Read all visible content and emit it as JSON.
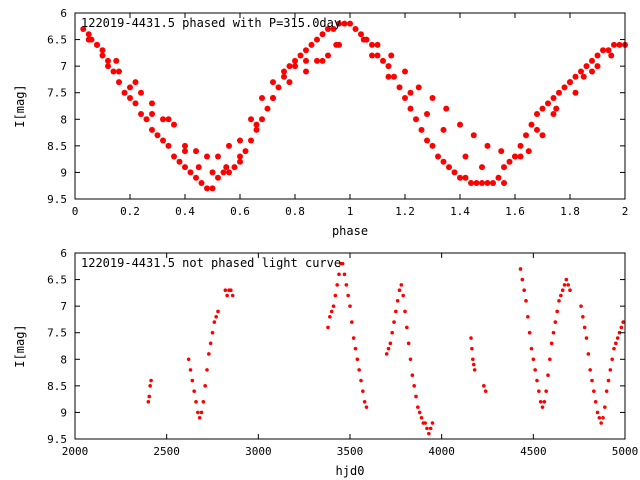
{
  "chart_data": [
    {
      "type": "scatter",
      "title": "122019-4431.5 phased with P=315.0day",
      "xlabel": "phase",
      "ylabel": "I[mag]",
      "xlim": [
        0,
        2
      ],
      "ylim": [
        9.5,
        6
      ],
      "y_inverted": true,
      "x_ticks": [
        0,
        0.2,
        0.4,
        0.6,
        0.8,
        1,
        1.2,
        1.4,
        1.6,
        1.8,
        2
      ],
      "x_tick_labels": [
        "0",
        "0.2",
        "0.4",
        "0.6",
        "0.8",
        "1",
        "1.2",
        "1.4",
        "1.6",
        "1.8",
        "2"
      ],
      "y_ticks": [
        6,
        6.5,
        7,
        7.5,
        8,
        8.5,
        9,
        9.5
      ],
      "y_tick_labels": [
        "6",
        "6.5",
        "7",
        "7.5",
        "8",
        "8.5",
        "9",
        "9.5"
      ],
      "grid": false,
      "legend": "none",
      "marker_color": "#ff0000",
      "series": [
        {
          "x": [
            0.03,
            0.05,
            0.06,
            0.08,
            0.1,
            0.12,
            0.14,
            0.16,
            0.18,
            0.2,
            0.22,
            0.24,
            0.26,
            0.28,
            0.3,
            0.32,
            0.34,
            0.36,
            0.38,
            0.4,
            0.42,
            0.44,
            0.46,
            0.48,
            0.5,
            0.52,
            0.54,
            0.56,
            0.58,
            0.6,
            0.62,
            0.64,
            0.66,
            0.68,
            0.7,
            0.72,
            0.74,
            0.76,
            0.78,
            0.8,
            0.82,
            0.84,
            0.86,
            0.88,
            0.9,
            0.92,
            0.94,
            0.96,
            0.98,
            1.0,
            1.02,
            1.04,
            1.06,
            1.08,
            1.1,
            1.12,
            1.14,
            1.16,
            1.18,
            1.2,
            1.22,
            1.24,
            1.26,
            1.28,
            1.3,
            1.32,
            1.34,
            1.36,
            1.38,
            1.4,
            1.42,
            1.44,
            1.46,
            1.48,
            1.5,
            1.52,
            1.54,
            1.56,
            1.58,
            1.6,
            1.62,
            1.64,
            1.66,
            1.68,
            1.7,
            1.72,
            1.74,
            1.76,
            1.78,
            1.8,
            1.82,
            1.84,
            1.86,
            1.88,
            1.9,
            1.92,
            1.94,
            1.96,
            1.98,
            2.0,
            0.05,
            0.08,
            0.12,
            0.16,
            0.2,
            0.24,
            0.28,
            0.32,
            0.36,
            0.4,
            0.44,
            0.48,
            0.52,
            0.56,
            0.6,
            0.64,
            0.68,
            0.72,
            0.76,
            0.8,
            0.84,
            0.88,
            0.92,
            0.96,
            1.05,
            1.1,
            1.15,
            1.2,
            1.25,
            1.3,
            1.35,
            1.4,
            1.45,
            1.5,
            1.55,
            1.6,
            1.65,
            1.7,
            1.75,
            1.8,
            1.85,
            1.9,
            1.95,
            0.1,
            0.15,
            0.22,
            0.28,
            0.34,
            0.4,
            0.45,
            0.5,
            0.55,
            0.6,
            0.66,
            0.72,
            0.78,
            0.84,
            0.9,
            0.95,
            1.08,
            1.14,
            1.22,
            1.28,
            1.34,
            1.42,
            1.48,
            1.56,
            1.62,
            1.68,
            1.74,
            1.82,
            1.88
          ],
          "y": [
            6.3,
            6.4,
            6.5,
            6.6,
            6.8,
            7.0,
            7.1,
            7.3,
            7.5,
            7.6,
            7.7,
            7.9,
            8.0,
            8.2,
            8.3,
            8.4,
            8.5,
            8.7,
            8.8,
            8.9,
            9.0,
            9.1,
            9.2,
            9.3,
            9.3,
            9.1,
            9.0,
            9.0,
            8.9,
            8.8,
            8.6,
            8.4,
            8.2,
            8.0,
            7.8,
            7.6,
            7.4,
            7.2,
            7.0,
            6.9,
            6.8,
            6.7,
            6.6,
            6.5,
            6.4,
            6.3,
            6.3,
            6.2,
            6.2,
            6.2,
            6.3,
            6.4,
            6.5,
            6.6,
            6.8,
            6.9,
            7.0,
            7.2,
            7.4,
            7.6,
            7.8,
            8.0,
            8.2,
            8.4,
            8.5,
            8.7,
            8.8,
            8.9,
            9.0,
            9.1,
            9.1,
            9.2,
            9.2,
            9.2,
            9.2,
            9.2,
            9.1,
            8.9,
            8.8,
            8.7,
            8.5,
            8.3,
            8.1,
            7.9,
            7.8,
            7.7,
            7.6,
            7.5,
            7.4,
            7.3,
            7.2,
            7.1,
            7.0,
            6.9,
            6.8,
            6.7,
            6.7,
            6.6,
            6.6,
            6.6,
            6.5,
            6.6,
            6.9,
            7.1,
            7.4,
            7.5,
            7.7,
            8.0,
            8.1,
            8.5,
            8.6,
            8.7,
            8.7,
            8.5,
            8.4,
            8.0,
            7.6,
            7.3,
            7.1,
            7.0,
            6.9,
            6.9,
            6.8,
            6.6,
            6.5,
            6.6,
            6.8,
            7.1,
            7.4,
            7.6,
            7.8,
            8.1,
            8.3,
            8.5,
            8.6,
            8.7,
            8.6,
            8.3,
            7.8,
            7.3,
            7.2,
            7.0,
            6.8,
            6.7,
            6.9,
            7.3,
            7.9,
            8.0,
            8.6,
            8.9,
            9.0,
            8.9,
            8.7,
            8.1,
            7.6,
            7.3,
            7.1,
            6.9,
            6.6,
            6.8,
            7.2,
            7.5,
            7.9,
            8.2,
            8.7,
            8.9,
            9.2,
            8.7,
            8.2,
            7.9,
            7.5,
            7.1
          ]
        }
      ]
    },
    {
      "type": "scatter",
      "title": "122019-4431.5 not phased light curve",
      "xlabel": "hjd0",
      "ylabel": "I[mag]",
      "xlim": [
        2000,
        5000
      ],
      "ylim": [
        9.5,
        6
      ],
      "y_inverted": true,
      "x_ticks": [
        2000,
        2500,
        3000,
        3500,
        4000,
        4500,
        5000
      ],
      "x_tick_labels": [
        "2000",
        "2500",
        "3000",
        "3500",
        "4000",
        "4500",
        "5000"
      ],
      "y_ticks": [
        6,
        6.5,
        7,
        7.5,
        8,
        8.5,
        9,
        9.5
      ],
      "y_tick_labels": [
        "6",
        "6.5",
        "7",
        "7.5",
        "8",
        "8.5",
        "9",
        "9.5"
      ],
      "grid": false,
      "legend": "none",
      "marker_color": "#ff0000",
      "series": [
        {
          "x": [
            2400,
            2405,
            2410,
            2415,
            2620,
            2630,
            2640,
            2650,
            2660,
            2670,
            2680,
            2690,
            2700,
            2710,
            2720,
            2730,
            2740,
            2750,
            2760,
            2770,
            2780,
            2820,
            2830,
            2840,
            2850,
            2860,
            3380,
            3390,
            3400,
            3410,
            3420,
            3430,
            3440,
            3450,
            3460,
            3470,
            3480,
            3490,
            3500,
            3510,
            3520,
            3530,
            3540,
            3550,
            3560,
            3570,
            3580,
            3590,
            3700,
            3710,
            3720,
            3730,
            3740,
            3750,
            3760,
            3770,
            3780,
            3790,
            3800,
            3810,
            3820,
            3830,
            3840,
            3850,
            3860,
            3870,
            3880,
            3890,
            3900,
            3910,
            3920,
            3930,
            3940,
            3950,
            4160,
            4165,
            4170,
            4175,
            4180,
            4230,
            4240,
            4430,
            4440,
            4450,
            4460,
            4470,
            4480,
            4490,
            4500,
            4510,
            4520,
            4530,
            4540,
            4550,
            4560,
            4570,
            4580,
            4590,
            4600,
            4610,
            4620,
            4630,
            4640,
            4650,
            4660,
            4670,
            4680,
            4690,
            4700,
            4760,
            4770,
            4780,
            4790,
            4800,
            4810,
            4820,
            4830,
            4840,
            4850,
            4860,
            4870,
            4880,
            4890,
            4900,
            4910,
            4920,
            4930,
            4940,
            4950,
            4960,
            4970,
            4980,
            4990
          ],
          "y": [
            8.8,
            8.7,
            8.5,
            8.4,
            8.0,
            8.2,
            8.4,
            8.6,
            8.8,
            9.0,
            9.1,
            9.0,
            8.8,
            8.5,
            8.2,
            7.9,
            7.7,
            7.5,
            7.3,
            7.2,
            7.1,
            6.7,
            6.8,
            6.7,
            6.7,
            6.8,
            7.4,
            7.2,
            7.1,
            7.0,
            6.8,
            6.6,
            6.4,
            6.2,
            6.2,
            6.4,
            6.6,
            6.8,
            7.0,
            7.3,
            7.6,
            7.8,
            8.0,
            8.2,
            8.4,
            8.6,
            8.8,
            8.9,
            7.9,
            7.8,
            7.7,
            7.5,
            7.3,
            7.1,
            6.9,
            6.7,
            6.6,
            6.8,
            7.1,
            7.4,
            7.7,
            8.0,
            8.3,
            8.5,
            8.7,
            8.9,
            9.0,
            9.1,
            9.2,
            9.2,
            9.3,
            9.4,
            9.3,
            9.2,
            7.6,
            7.8,
            8.0,
            8.1,
            8.2,
            8.5,
            8.6,
            6.3,
            6.5,
            6.7,
            6.9,
            7.2,
            7.5,
            7.8,
            8.0,
            8.2,
            8.4,
            8.6,
            8.8,
            8.9,
            8.8,
            8.6,
            8.3,
            8.0,
            7.7,
            7.5,
            7.3,
            7.1,
            6.9,
            6.8,
            6.7,
            6.6,
            6.5,
            6.6,
            6.7,
            7.0,
            7.2,
            7.4,
            7.6,
            7.9,
            8.2,
            8.4,
            8.6,
            8.8,
            9.0,
            9.1,
            9.2,
            9.1,
            8.9,
            8.6,
            8.4,
            8.2,
            8.0,
            7.8,
            7.7,
            7.6,
            7.5,
            7.4,
            7.3
          ]
        }
      ]
    }
  ]
}
